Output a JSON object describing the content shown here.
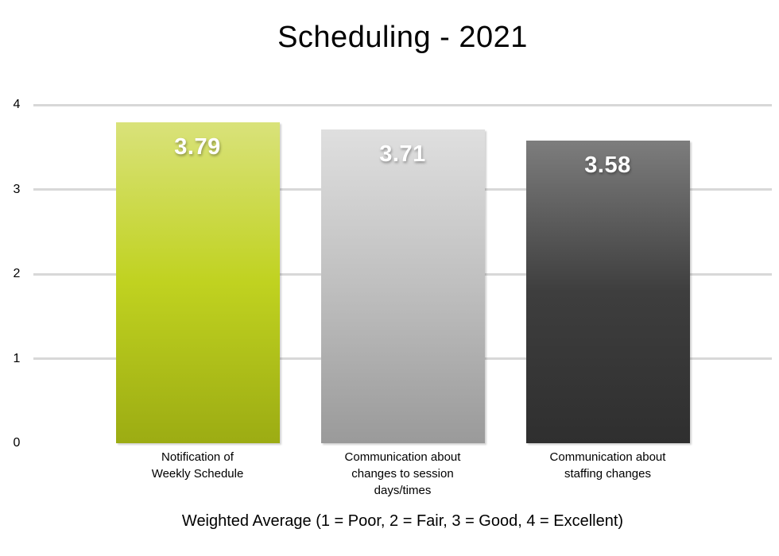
{
  "title": "Scheduling - 2021",
  "chart_data": {
    "type": "bar",
    "title": "Scheduling - 2021",
    "categories": [
      "Notification of\nWeekly Schedule",
      "Communication about\nchanges to session\ndays/times",
      "Communication about\nstaffing changes"
    ],
    "values": [
      3.79,
      3.71,
      3.58
    ],
    "value_labels": [
      "3.79",
      "3.71",
      "3.58"
    ],
    "xlabel": "Weighted Average (1 = Poor, 2 = Fair, 3 = Good, 4 = Excellent)",
    "ylabel": "",
    "ylim": [
      0,
      4
    ],
    "y_ticks": [
      0,
      1,
      2,
      3,
      4
    ],
    "grid": "horizontal gridlines at 1, 2, 3, 4 only; no baseline at 0",
    "legend": "none",
    "gridline_color": "#d8d8d8",
    "value_label_color": "#ffffff",
    "bar_colors": [
      {
        "name": "yellow-green-gradient",
        "top": "#d9e27a",
        "mid": "#c0d220",
        "bottom": "#9cac13"
      },
      {
        "name": "light-gray-gradient",
        "top": "#dfdfdf",
        "mid": "#bfbfbf",
        "bottom": "#9a9a9a"
      },
      {
        "name": "dark-gray-gradient",
        "top": "#7d7d7d",
        "mid": "#3e3e3e",
        "bottom": "#2f2f2f"
      }
    ]
  }
}
